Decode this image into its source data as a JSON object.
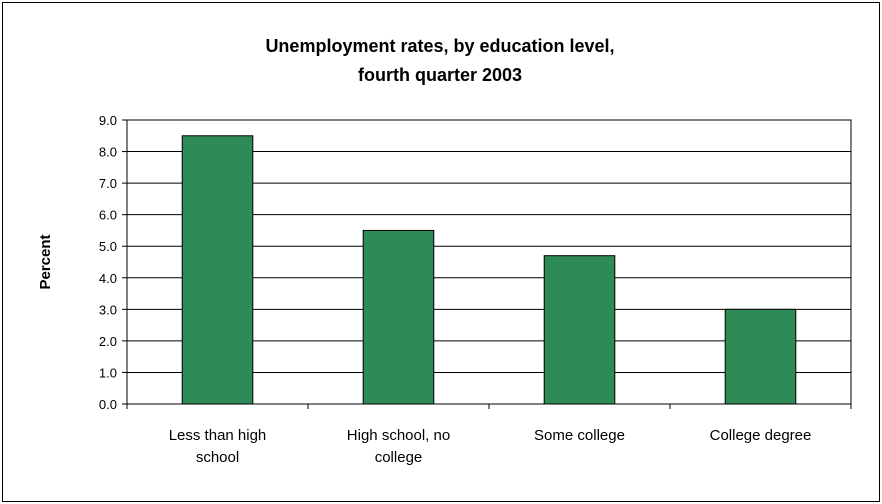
{
  "chart_data": {
    "type": "bar",
    "title_lines": [
      "Unemployment rates, by education level,",
      "fourth quarter 2003"
    ],
    "ylabel": "Percent",
    "xlabel": "",
    "categories": [
      [
        "Less than high",
        "school"
      ],
      [
        "High school, no",
        "college"
      ],
      [
        "Some college"
      ],
      [
        "College degree"
      ]
    ],
    "values": [
      8.5,
      5.5,
      4.7,
      3.0
    ],
    "ylim": [
      0,
      9
    ],
    "yticks": [
      "0.0",
      "1.0",
      "2.0",
      "3.0",
      "4.0",
      "5.0",
      "6.0",
      "7.0",
      "8.0",
      "9.0"
    ],
    "grid": true,
    "legend": "none",
    "bar_color": "#2e8b57"
  }
}
